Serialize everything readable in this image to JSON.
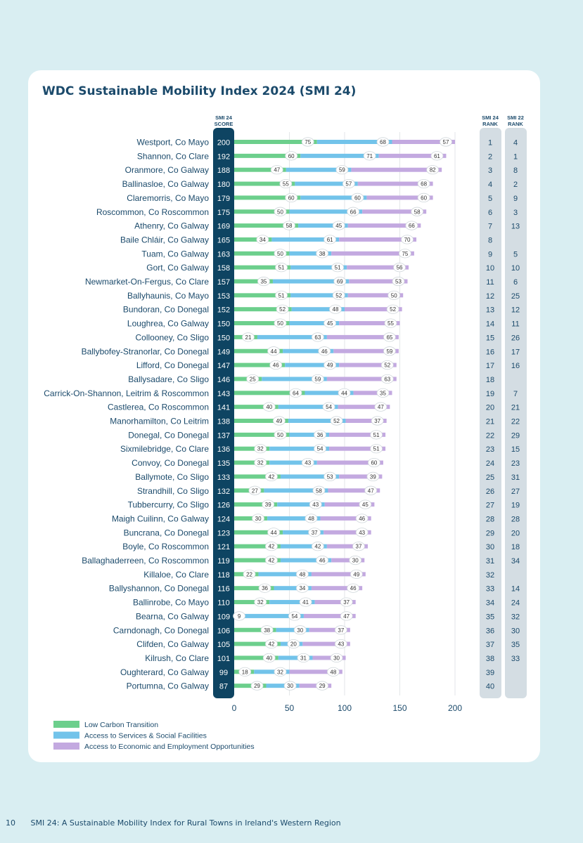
{
  "title": "WDC Sustainable Mobility Index 2024 (SMI 24)",
  "footer": {
    "page": "10",
    "text": "SMI 24: A Sustainable Mobility Index for Rural Towns in Ireland's Western Region"
  },
  "colors": {
    "low_carbon": "#6ccf8c",
    "services": "#72c3ea",
    "economic": "#c3a9e0",
    "score_bg": "#0e4462",
    "rank_bg": "#d4dde3",
    "text": "#1b4a6b"
  },
  "chart_data": {
    "type": "bar",
    "stacked": true,
    "orientation": "horizontal",
    "title": "WDC Sustainable Mobility Index 2024 (SMI 24)",
    "score_header": [
      "SMI 24",
      "SCORE"
    ],
    "rank24_header": [
      "SMI 24",
      "RANK"
    ],
    "rank22_header": [
      "SMI 22",
      "RANK"
    ],
    "xlim": [
      0,
      200
    ],
    "xticks": [
      "0",
      "50",
      "100",
      "150",
      "200"
    ],
    "legend": [
      {
        "label": "Low Carbon Transition",
        "color": "#6ccf8c"
      },
      {
        "label": "Access to Services & Social Facilities",
        "color": "#72c3ea"
      },
      {
        "label": "Access to Economic and Employment Opportunities",
        "color": "#c3a9e0"
      }
    ],
    "legend_position": "bottom-left",
    "rows": [
      {
        "town": "Westport, Co Mayo",
        "score": "200",
        "low": 75,
        "services": 68,
        "economic": 57,
        "rank24": "1",
        "rank22": "4"
      },
      {
        "town": "Shannon, Co Clare",
        "score": "192",
        "low": 60,
        "services": 71,
        "economic": 61,
        "rank24": "2",
        "rank22": "1"
      },
      {
        "town": "Oranmore, Co Galway",
        "score": "188",
        "low": 47,
        "services": 59,
        "economic": 82,
        "rank24": "3",
        "rank22": "8"
      },
      {
        "town": "Ballinasloe, Co Galway",
        "score": "180",
        "low": 55,
        "services": 57,
        "economic": 68,
        "rank24": "4",
        "rank22": "2"
      },
      {
        "town": "Claremorris, Co Mayo",
        "score": "179",
        "low": 60,
        "services": 60,
        "economic": 60,
        "rank24": "5",
        "rank22": "9"
      },
      {
        "town": "Roscommon, Co Roscommon",
        "score": "175",
        "low": 50,
        "services": 66,
        "economic": 58,
        "rank24": "6",
        "rank22": "3"
      },
      {
        "town": "Athenry, Co Galway",
        "score": "169",
        "low": 58,
        "services": 45,
        "economic": 66,
        "rank24": "7",
        "rank22": "13"
      },
      {
        "town": "Baile Chláir, Co Galway",
        "score": "165",
        "low": 34,
        "services": 61,
        "economic": 70,
        "rank24": "8",
        "rank22": ""
      },
      {
        "town": "Tuam, Co Galway",
        "score": "163",
        "low": 50,
        "services": 38,
        "economic": 75,
        "rank24": "9",
        "rank22": "5"
      },
      {
        "town": "Gort, Co Galway",
        "score": "158",
        "low": 51,
        "services": 51,
        "economic": 56,
        "rank24": "10",
        "rank22": "10"
      },
      {
        "town": "Newmarket-On-Fergus, Co Clare",
        "score": "157",
        "low": 35,
        "services": 69,
        "economic": 53,
        "rank24": "11",
        "rank22": "6"
      },
      {
        "town": "Ballyhaunis, Co Mayo",
        "score": "153",
        "low": 51,
        "services": 52,
        "economic": 50,
        "rank24": "12",
        "rank22": "25"
      },
      {
        "town": "Bundoran, Co Donegal",
        "score": "152",
        "low": 52,
        "services": 48,
        "economic": 52,
        "rank24": "13",
        "rank22": "12"
      },
      {
        "town": "Loughrea, Co Galway",
        "score": "150",
        "low": 50,
        "services": 45,
        "economic": 55,
        "rank24": "14",
        "rank22": "11"
      },
      {
        "town": "Collooney, Co Sligo",
        "score": "150",
        "low": 21,
        "services": 63,
        "economic": 65,
        "rank24": "15",
        "rank22": "26"
      },
      {
        "town": "Ballybofey-Stranorlar, Co Donegal",
        "score": "149",
        "low": 44,
        "services": 46,
        "economic": 59,
        "rank24": "16",
        "rank22": "17"
      },
      {
        "town": "Lifford, Co Donegal",
        "score": "147",
        "low": 46,
        "services": 49,
        "economic": 52,
        "rank24": "17",
        "rank22": "16"
      },
      {
        "town": "Ballysadare, Co Sligo",
        "score": "146",
        "low": 25,
        "services": 59,
        "economic": 63,
        "rank24": "18",
        "rank22": ""
      },
      {
        "town": "Carrick-On-Shannon, Leitrim & Roscommon",
        "score": "143",
        "low": 64,
        "services": 44,
        "economic": 35,
        "rank24": "19",
        "rank22": "7"
      },
      {
        "town": "Castlerea, Co Roscommon",
        "score": "141",
        "low": 40,
        "services": 54,
        "economic": 47,
        "rank24": "20",
        "rank22": "21"
      },
      {
        "town": "Manorhamilton, Co Leitrim",
        "score": "138",
        "low": 49,
        "services": 52,
        "economic": 37,
        "rank24": "21",
        "rank22": "22"
      },
      {
        "town": "Donegal, Co Donegal",
        "score": "137",
        "low": 50,
        "services": 36,
        "economic": 51,
        "rank24": "22",
        "rank22": "29"
      },
      {
        "town": "Sixmilebridge, Co Clare",
        "score": "136",
        "low": 32,
        "services": 54,
        "economic": 51,
        "rank24": "23",
        "rank22": "15"
      },
      {
        "town": "Convoy, Co Donegal",
        "score": "135",
        "low": 32,
        "services": 43,
        "economic": 60,
        "rank24": "24",
        "rank22": "23"
      },
      {
        "town": "Ballymote, Co Sligo",
        "score": "133",
        "low": 42,
        "services": 53,
        "economic": 39,
        "rank24": "25",
        "rank22": "31"
      },
      {
        "town": "Strandhill, Co Sligo",
        "score": "132",
        "low": 27,
        "services": 58,
        "economic": 47,
        "rank24": "26",
        "rank22": "27"
      },
      {
        "town": "Tubbercurry, Co Sligo",
        "score": "126",
        "low": 39,
        "services": 43,
        "economic": 45,
        "rank24": "27",
        "rank22": "19"
      },
      {
        "town": "Maigh Cuilinn, Co Galway",
        "score": "124",
        "low": 30,
        "services": 48,
        "economic": 46,
        "rank24": "28",
        "rank22": "28"
      },
      {
        "town": "Buncrana, Co Donegal",
        "score": "123",
        "low": 44,
        "services": 37,
        "economic": 43,
        "rank24": "29",
        "rank22": "20"
      },
      {
        "town": "Boyle, Co Roscommon",
        "score": "121",
        "low": 42,
        "services": 42,
        "economic": 37,
        "rank24": "30",
        "rank22": "18"
      },
      {
        "town": "Ballaghaderreen, Co Roscommon",
        "score": "119",
        "low": 42,
        "services": 46,
        "economic": 30,
        "rank24": "31",
        "rank22": "34"
      },
      {
        "town": "Killaloe, Co Clare",
        "score": "118",
        "low": 22,
        "services": 48,
        "economic": 49,
        "rank24": "32",
        "rank22": ""
      },
      {
        "town": "Ballyshannon, Co Donegal",
        "score": "116",
        "low": 36,
        "services": 34,
        "economic": 46,
        "rank24": "33",
        "rank22": "14"
      },
      {
        "town": "Ballinrobe, Co Mayo",
        "score": "110",
        "low": 32,
        "services": 41,
        "economic": 37,
        "rank24": "34",
        "rank22": "24"
      },
      {
        "town": "Bearna, Co Galway",
        "score": "109",
        "low": 9,
        "services": 54,
        "economic": 47,
        "rank24": "35",
        "rank22": "32"
      },
      {
        "town": "Carndonagh, Co Donegal",
        "score": "106",
        "low": 38,
        "services": 30,
        "economic": 37,
        "rank24": "36",
        "rank22": "30"
      },
      {
        "town": "Clifden, Co Galway",
        "score": "105",
        "low": 42,
        "services": 20,
        "economic": 43,
        "rank24": "37",
        "rank22": "35"
      },
      {
        "town": "Kilrush, Co Clare",
        "score": "101",
        "low": 40,
        "services": 31,
        "economic": 30,
        "rank24": "38",
        "rank22": "33"
      },
      {
        "town": "Oughterard, Co Galway",
        "score": "99",
        "low": 18,
        "services": 32,
        "economic": 48,
        "rank24": "39",
        "rank22": ""
      },
      {
        "town": "Portumna, Co Galway",
        "score": "87",
        "low": 29,
        "services": 30,
        "economic": 29,
        "rank24": "40",
        "rank22": ""
      }
    ]
  }
}
